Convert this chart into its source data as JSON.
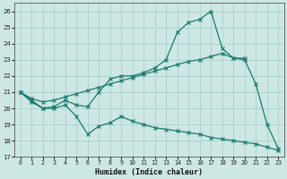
{
  "xlabel": "Humidex (Indice chaleur)",
  "ylabel": "",
  "xlim": [
    -0.5,
    23.5
  ],
  "ylim": [
    17,
    26.5
  ],
  "yticks": [
    17,
    18,
    19,
    20,
    21,
    22,
    23,
    24,
    25,
    26
  ],
  "xticks": [
    0,
    1,
    2,
    3,
    4,
    5,
    6,
    7,
    8,
    9,
    10,
    11,
    12,
    13,
    14,
    15,
    16,
    17,
    18,
    19,
    20,
    21,
    22,
    23
  ],
  "bg_color": "#cde8e4",
  "grid_color": "#aacfcb",
  "line_color": "#1a7a6e",
  "line1_x": [
    0,
    1,
    2,
    3,
    4,
    5,
    6,
    7,
    8,
    9,
    10,
    11,
    12,
    13,
    14,
    15,
    16,
    17,
    18,
    19,
    20,
    21,
    22,
    23
  ],
  "line1_y": [
    21.0,
    20.4,
    20.0,
    20.0,
    20.2,
    19.5,
    18.4,
    18.9,
    19.1,
    19.5,
    19.2,
    19.0,
    18.8,
    18.7,
    18.6,
    18.5,
    18.4,
    18.2,
    18.1,
    18.0,
    17.9,
    17.8,
    17.6,
    17.4
  ],
  "line2_x": [
    0,
    1,
    2,
    3,
    4,
    5,
    6,
    7,
    8,
    9,
    10,
    11,
    12,
    13,
    14,
    15,
    16,
    17,
    18,
    19,
    20
  ],
  "line2_y": [
    21.0,
    20.6,
    20.4,
    20.5,
    20.7,
    20.9,
    21.1,
    21.3,
    21.5,
    21.7,
    21.9,
    22.1,
    22.3,
    22.5,
    22.7,
    22.9,
    23.0,
    23.2,
    23.4,
    23.1,
    23.1
  ],
  "line3_x": [
    0,
    1,
    2,
    3,
    4,
    5,
    6,
    7,
    8,
    9,
    10,
    11,
    12,
    13,
    14,
    15,
    16,
    17,
    18,
    19,
    20,
    21,
    22,
    23
  ],
  "line3_y": [
    21.0,
    20.5,
    20.0,
    20.1,
    20.5,
    20.2,
    20.1,
    21.0,
    21.8,
    22.0,
    22.0,
    22.2,
    22.5,
    23.0,
    24.7,
    25.3,
    25.5,
    26.0,
    23.7,
    23.1,
    23.0,
    21.5,
    19.0,
    17.5
  ]
}
